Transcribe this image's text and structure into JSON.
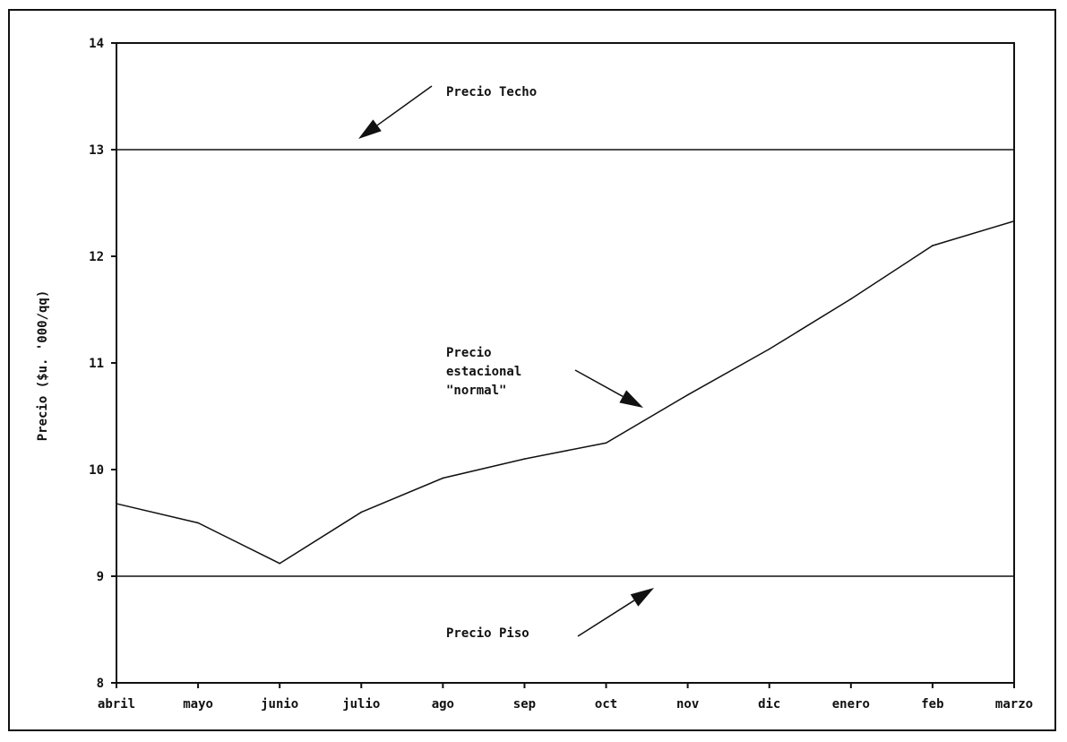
{
  "chart_data": {
    "type": "line",
    "title": "",
    "xlabel": "",
    "ylabel": "Precio ($u. '000/qq)",
    "categories": [
      "abril",
      "mayo",
      "junio",
      "julio",
      "ago",
      "sep",
      "oct",
      "nov",
      "dic",
      "enero",
      "feb",
      "marzo"
    ],
    "ylim": [
      8,
      14
    ],
    "yticks": [
      8,
      9,
      10,
      11,
      12,
      13,
      14
    ],
    "grid": false,
    "series": [
      {
        "values": [
          9.68,
          9.5,
          9.12,
          9.6,
          9.92,
          10.1,
          10.25,
          10.7,
          11.13,
          11.6,
          12.1,
          12.33
        ]
      }
    ],
    "reference_lines": [
      {
        "value": 13,
        "label": "Precio Techo"
      },
      {
        "value": 9,
        "label": "Precio Piso"
      }
    ],
    "annotations": [
      {
        "lines": [
          "Precio Techo"
        ],
        "points_to": "ceiling-line"
      },
      {
        "lines": [
          "Precio",
          "estacional",
          "\"normal\""
        ],
        "points_to": "seasonal-series"
      },
      {
        "lines": [
          "Precio Piso"
        ],
        "points_to": "floor-line"
      }
    ]
  }
}
